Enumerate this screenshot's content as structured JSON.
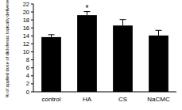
{
  "chart_data": {
    "type": "bar",
    "y_label": "% of applied dose of diclofenac topically delivered",
    "categories": [
      "control",
      "HA",
      "CS",
      "NaCMC"
    ],
    "values": [
      13.7,
      19.2,
      16.6,
      14.1
    ],
    "errors": [
      0.6,
      0.9,
      1.5,
      1.3
    ],
    "color": "#000000",
    "ylim": [
      0,
      22
    ],
    "yticks": [
      0,
      2,
      4,
      6,
      8,
      10,
      12,
      14,
      16,
      18,
      20,
      22
    ],
    "grid": false,
    "annotations": [
      {
        "text": "*",
        "category": "HA"
      }
    ]
  }
}
